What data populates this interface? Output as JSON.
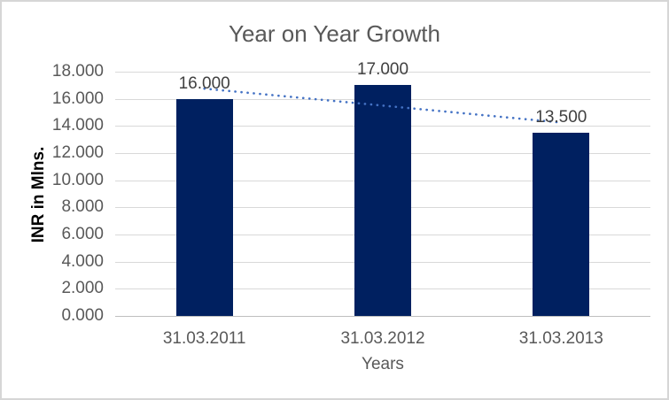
{
  "chart_data": {
    "type": "bar",
    "title": "Year on Year Growth",
    "xlabel": "Years",
    "ylabel": "INR in Mlns.",
    "categories": [
      "31.03.2011",
      "31.03.2012",
      "31.03.2013"
    ],
    "values": [
      16.0,
      17.0,
      13.5
    ],
    "data_labels": [
      "16.000",
      "17.000",
      "13.500"
    ],
    "ylim": [
      0,
      18
    ],
    "ytick_step": 2,
    "y_tick_labels": [
      "0.000",
      "2.000",
      "4.000",
      "6.000",
      "8.000",
      "10.000",
      "12.000",
      "14.000",
      "16.000",
      "18.000"
    ],
    "grid": true,
    "legend": "none",
    "trendline": {
      "type": "linear",
      "style": "dotted"
    },
    "colors": {
      "bar": "#002060",
      "trendline": "#4472C4",
      "gridline": "#D9D9D9",
      "axis_line": "#BFBFBF",
      "title_text": "#595959",
      "tick_text": "#595959",
      "data_label_text": "#404040",
      "frame_border": "#D6D6D6",
      "background": "#FFFFFF"
    }
  }
}
